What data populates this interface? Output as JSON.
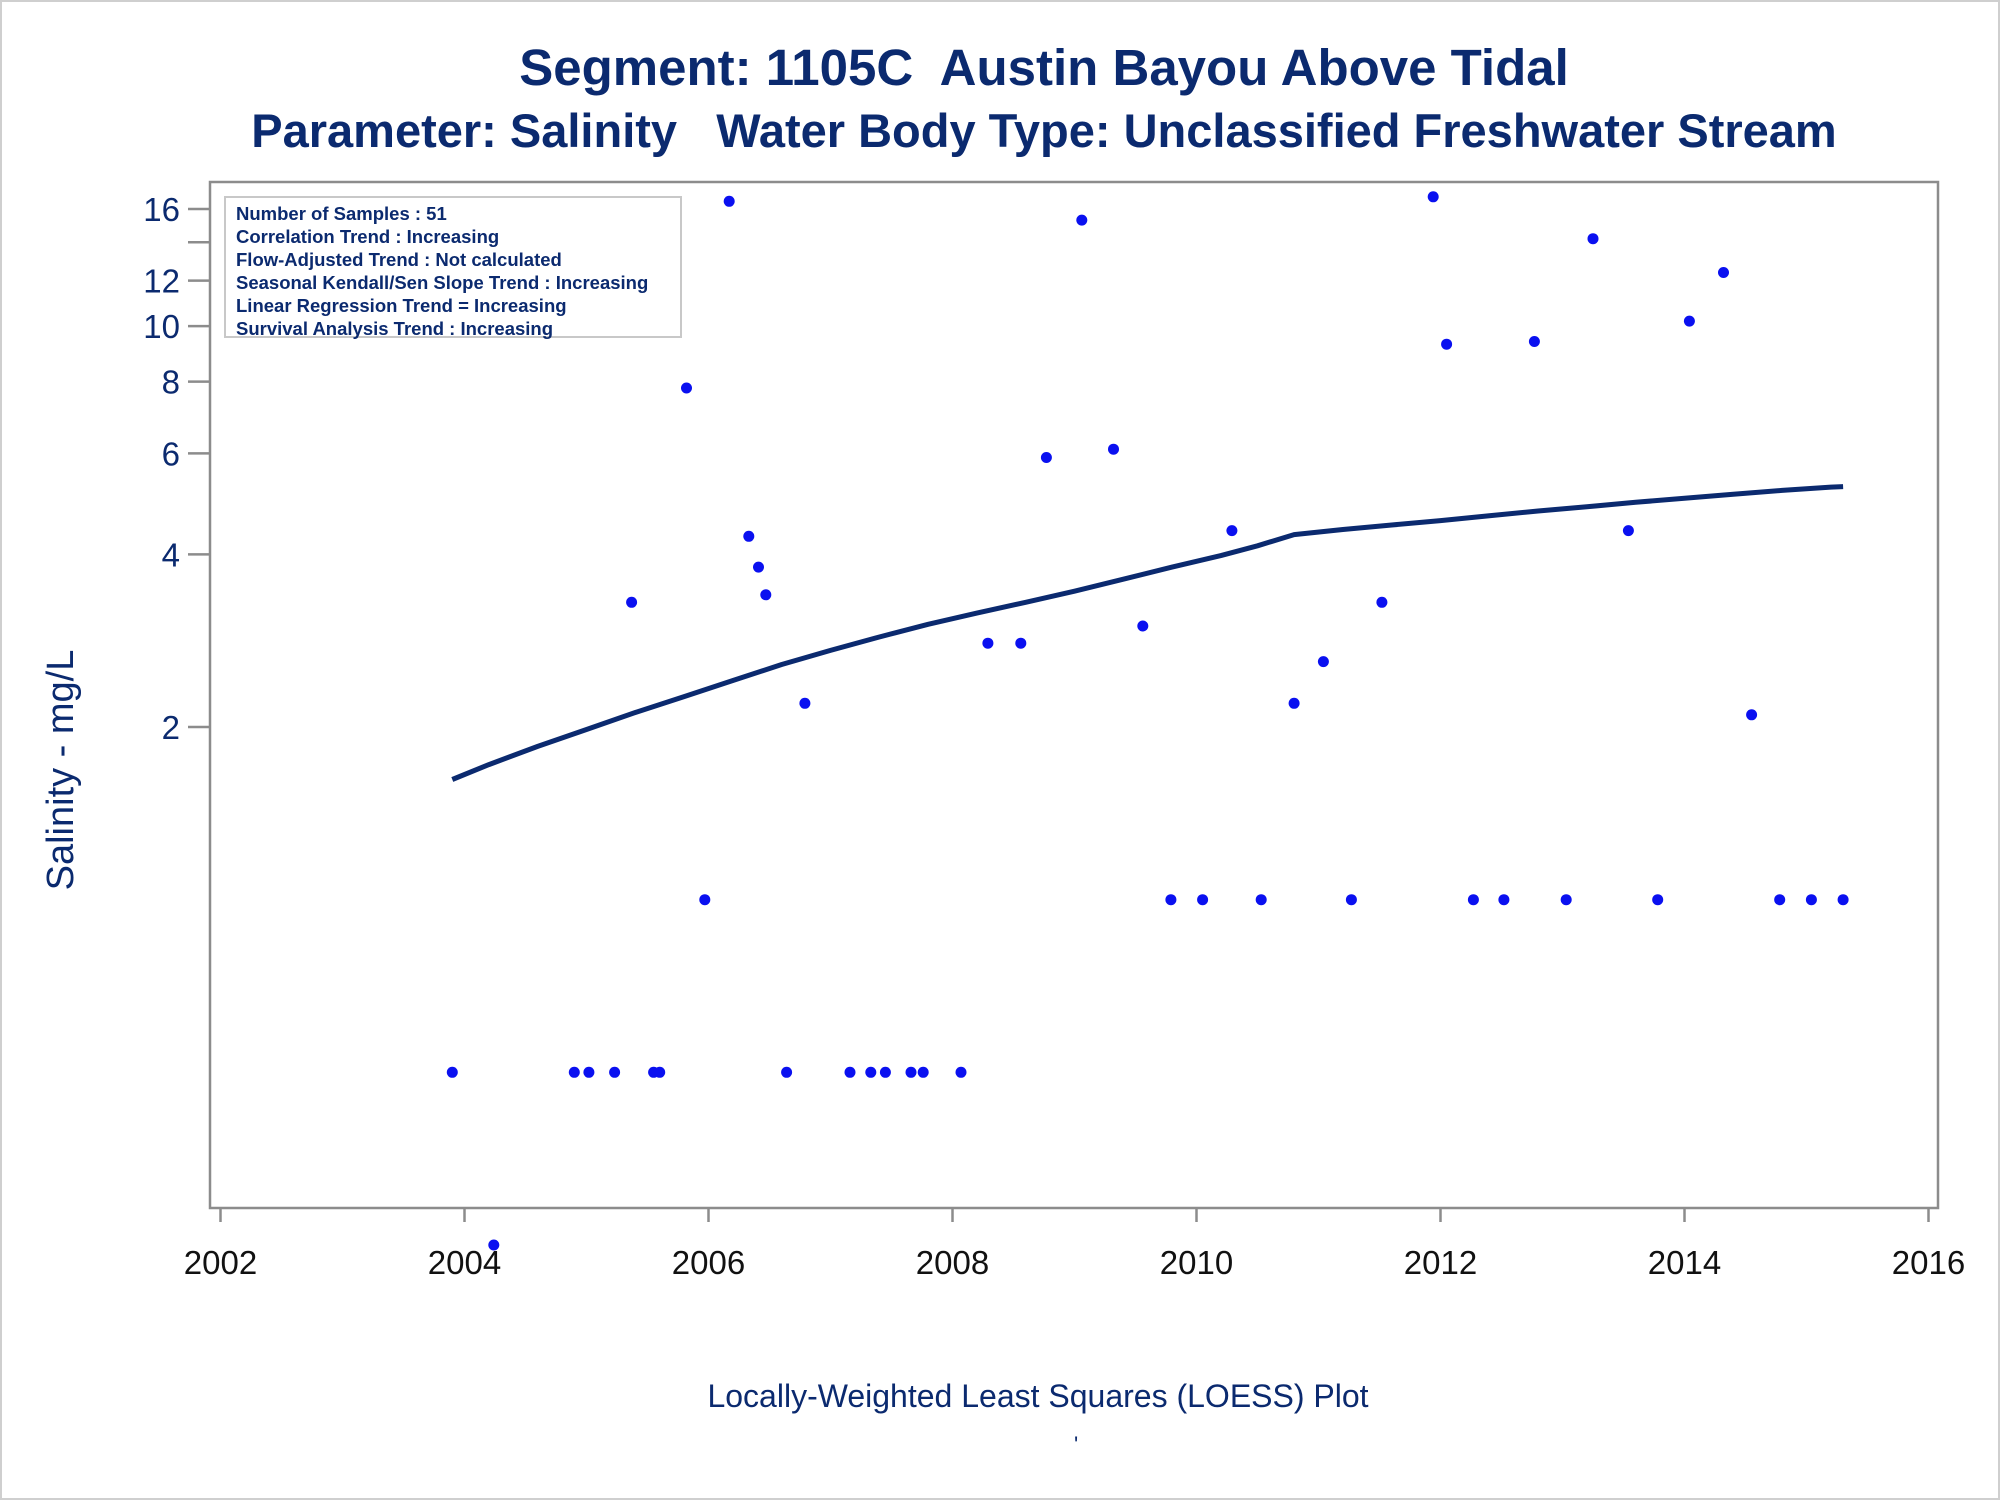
{
  "header": {
    "title": "Segment: 1105C  Austin Bayou Above Tidal",
    "subtitle": "Parameter: Salinity   Water Body Type: Unclassified Freshwater Stream"
  },
  "legend_box": {
    "lines": [
      "Number of Samples : 51",
      "Correlation Trend : Increasing",
      "Flow-Adjusted Trend : Not calculated",
      "Seasonal Kendall/Sen Slope Trend : Increasing",
      "Linear Regression Trend = Increasing",
      "Survival Analysis Trend : Increasing"
    ]
  },
  "footnote": "Locally-Weighted Least Squares (LOESS) Plot",
  "footnote_mark": "'",
  "colors": {
    "text": "#0b2a6f",
    "points": "#0a10f0",
    "curve": "#0b2a6f",
    "axis": "#8c8c8c"
  },
  "chart_data": {
    "type": "scatter",
    "title": "",
    "xlabel": "",
    "ylabel": "Salinity - mg/L",
    "y_scale": "log",
    "xlim": [
      2002,
      2016
    ],
    "ylim": [
      0.23,
      17.5
    ],
    "x_ticks": [
      2002,
      2004,
      2006,
      2008,
      2010,
      2012,
      2014,
      2016
    ],
    "y_ticks": [
      2,
      4,
      6,
      8,
      10,
      12,
      16
    ],
    "y_minor_ticks": [
      14
    ],
    "grid": false,
    "series": [
      {
        "kind": "points",
        "x": [
          2003.9,
          2004.24,
          2004.9,
          2005.02,
          2005.23,
          2005.37,
          2005.55,
          2005.6,
          2005.82,
          2005.97,
          2006.17,
          2006.33,
          2006.41,
          2006.47,
          2006.64,
          2006.79,
          2007.16,
          2007.33,
          2007.45,
          2007.66,
          2007.76,
          2008.07,
          2008.29,
          2008.56,
          2008.77,
          2009.06,
          2009.32,
          2009.56,
          2009.79,
          2010.05,
          2010.29,
          2010.53,
          2010.8,
          2011.04,
          2011.27,
          2011.52,
          2011.94,
          2012.05,
          2012.27,
          2012.52,
          2012.77,
          2013.03,
          2013.25,
          2013.54,
          2013.78,
          2014.04,
          2014.32,
          2014.55,
          2014.78,
          2015.04,
          2015.3
        ],
        "y": [
          0.5,
          0.25,
          0.5,
          0.5,
          0.5,
          3.3,
          0.5,
          0.5,
          7.8,
          1.0,
          16.5,
          4.3,
          3.8,
          3.4,
          0.5,
          2.2,
          0.5,
          0.5,
          0.5,
          0.5,
          0.5,
          0.5,
          2.8,
          2.8,
          5.9,
          15.3,
          6.1,
          3.0,
          1.0,
          1.0,
          4.4,
          1.0,
          2.2,
          2.6,
          1.0,
          3.3,
          16.8,
          9.3,
          1.0,
          1.0,
          9.4,
          1.0,
          14.2,
          4.4,
          1.0,
          10.2,
          12.4,
          2.1,
          1.0,
          1.0,
          1.0
        ]
      },
      {
        "kind": "loess_curve",
        "x": [
          2003.9,
          2004.2,
          2004.6,
          2005.0,
          2005.4,
          2005.8,
          2006.2,
          2006.6,
          2007.0,
          2007.4,
          2007.8,
          2008.2,
          2008.6,
          2009.0,
          2009.4,
          2009.8,
          2010.2,
          2010.5,
          2010.8,
          2011.2,
          2011.6,
          2012.0,
          2012.4,
          2012.8,
          2013.2,
          2013.6,
          2014.0,
          2014.4,
          2014.8,
          2015.2,
          2015.3
        ],
        "y": [
          1.62,
          1.72,
          1.85,
          1.98,
          2.12,
          2.26,
          2.41,
          2.57,
          2.72,
          2.87,
          3.02,
          3.16,
          3.3,
          3.45,
          3.62,
          3.8,
          3.98,
          4.14,
          4.33,
          4.42,
          4.5,
          4.58,
          4.67,
          4.76,
          4.84,
          4.93,
          5.01,
          5.09,
          5.17,
          5.24,
          5.25
        ]
      }
    ]
  }
}
